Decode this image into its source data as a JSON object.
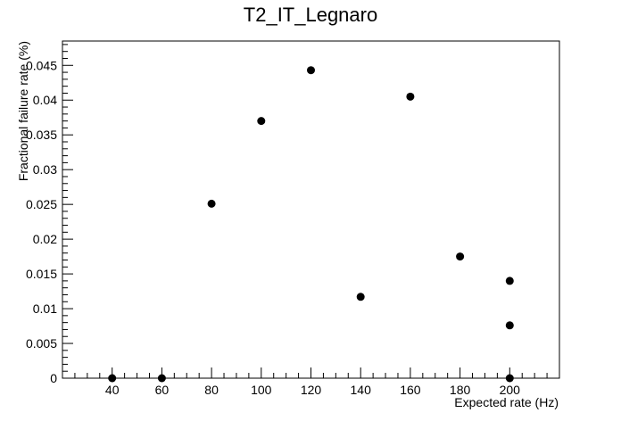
{
  "chart_data": {
    "type": "scatter",
    "title": "T2_IT_Legnaro",
    "xlabel": "Expected rate (Hz)",
    "ylabel": "Fractional failure rate (%)",
    "xlim": [
      20,
      220
    ],
    "ylim": [
      0,
      0.0485
    ],
    "grid": false,
    "legend": "none",
    "marker_color": "#000000",
    "x_ticks": [
      "40",
      "60",
      "80",
      "100",
      "120",
      "140",
      "160",
      "180",
      "200"
    ],
    "y_ticks": [
      "0",
      "0.005",
      "0.01",
      "0.015",
      "0.02",
      "0.025",
      "0.03",
      "0.035",
      "0.04",
      "0.045"
    ],
    "points": [
      {
        "x": 40,
        "y": 0
      },
      {
        "x": 60,
        "y": 0
      },
      {
        "x": 80,
        "y": 0.0251
      },
      {
        "x": 100,
        "y": 0.037
      },
      {
        "x": 120,
        "y": 0.0443
      },
      {
        "x": 140,
        "y": 0.0117
      },
      {
        "x": 160,
        "y": 0.0405
      },
      {
        "x": 180,
        "y": 0.0175
      },
      {
        "x": 200,
        "y": 0.014
      },
      {
        "x": 200,
        "y": 0.0076
      },
      {
        "x": 200,
        "y": 0
      }
    ]
  }
}
